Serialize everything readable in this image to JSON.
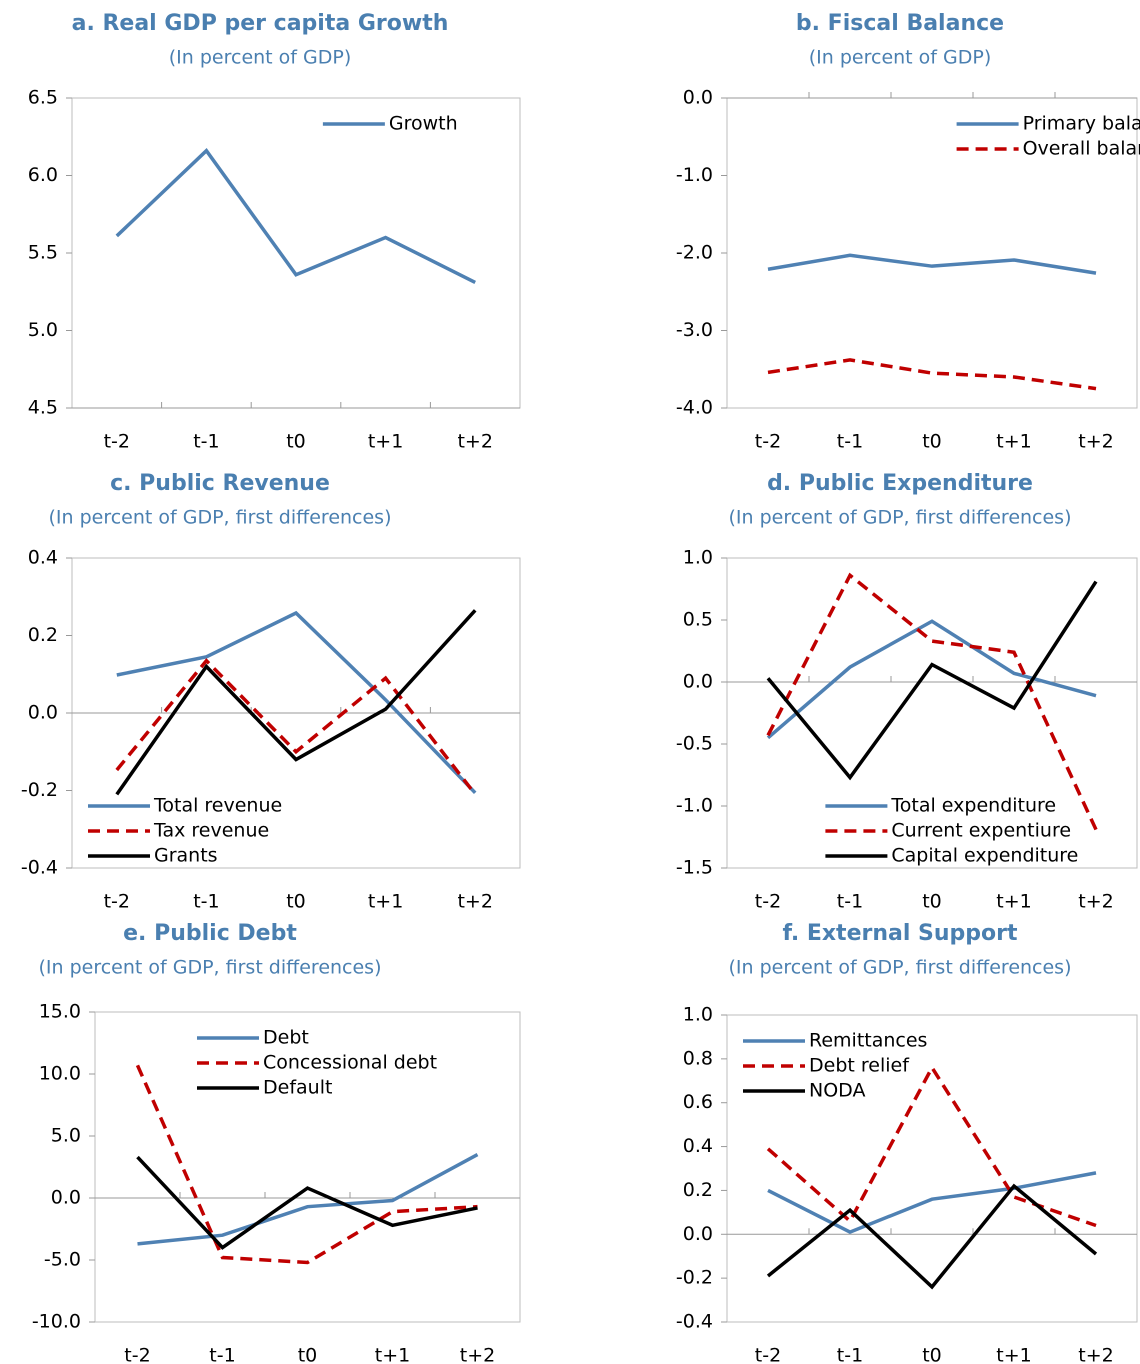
{
  "chart_data": [
    {
      "type": "line",
      "title": "a. Real GDP per capita Growth",
      "subtitle": "(In percent of GDP)",
      "categories": [
        "t-2",
        "t-1",
        "t0",
        "t+1",
        "t+2"
      ],
      "series": [
        {
          "name": "Growth",
          "color": "#4f81b3",
          "style": "solid",
          "values": [
            5.61,
            6.16,
            5.36,
            5.6,
            5.31
          ]
        }
      ],
      "ylim": [
        4.5,
        6.5
      ],
      "yticks": [
        4.5,
        {
          "value": 5,
          "label": "5.0"
        },
        5.5,
        {
          "value": 6,
          "label": "6.0"
        },
        6.5
      ],
      "legend": "upper right"
    },
    {
      "type": "line",
      "title": "b. Fiscal Balance",
      "subtitle": "(In percent of GDP)",
      "categories": [
        "t-2",
        "t-1",
        "t0",
        "t+1",
        "t+2"
      ],
      "series": [
        {
          "name": "Primary balance",
          "color": "#4f81b3",
          "style": "solid",
          "values": [
            -2.21,
            -2.03,
            -2.17,
            -2.09,
            -2.26
          ]
        },
        {
          "name": "Overall balance",
          "color": "#c00000",
          "style": "dashed",
          "values": [
            -3.54,
            -3.38,
            -3.55,
            -3.6,
            -3.75
          ]
        }
      ],
      "ylim": [
        -4,
        0
      ],
      "yticks": [
        {
          "value": -4,
          "label": "-4.0"
        },
        {
          "value": -3,
          "label": "-3.0"
        },
        {
          "value": -2,
          "label": "-2.0"
        },
        {
          "value": -1,
          "label": "-1.0"
        },
        {
          "value": 0,
          "label": "0.0"
        }
      ],
      "legend": "upper right"
    },
    {
      "type": "line",
      "title": "c. Public Revenue",
      "subtitle": "(In percent of GDP, first differences)",
      "categories": [
        "t-2",
        "t-1",
        "t0",
        "t+1",
        "t+2"
      ],
      "series": [
        {
          "name": "Total revenue",
          "color": "#4f81b3",
          "style": "solid",
          "values": [
            0.098,
            0.145,
            0.258,
            0.034,
            -0.206
          ]
        },
        {
          "name": "Tax revenue",
          "color": "#c00000",
          "style": "dashed",
          "values": [
            -0.147,
            0.135,
            -0.1,
            0.09,
            -0.21
          ]
        },
        {
          "name": "Grants",
          "color": "#000000",
          "style": "solid",
          "values": [
            -0.21,
            0.12,
            -0.12,
            0.01,
            0.265
          ]
        }
      ],
      "ylim": [
        -0.4,
        0.4
      ],
      "yticks": [
        -0.4,
        -0.2,
        {
          "value": 0,
          "label": "0.0"
        },
        0.2,
        0.4
      ],
      "legend": "lower left"
    },
    {
      "type": "line",
      "title": "d. Public Expenditure",
      "subtitle": "(In percent of GDP, first differences)",
      "categories": [
        "t-2",
        "t-1",
        "t0",
        "t+1",
        "t+2"
      ],
      "series": [
        {
          "name": "Total expenditure",
          "color": "#4f81b3",
          "style": "solid",
          "values": [
            -0.45,
            0.12,
            0.49,
            0.07,
            -0.11
          ]
        },
        {
          "name": "Current expentiure",
          "color": "#c00000",
          "style": "dashed",
          "values": [
            -0.43,
            0.86,
            0.33,
            0.24,
            -1.19
          ]
        },
        {
          "name": "Capital expenditure",
          "color": "#000000",
          "style": "solid",
          "values": [
            0.03,
            -0.77,
            0.14,
            -0.21,
            0.81
          ]
        }
      ],
      "ylim": [
        -1.5,
        1
      ],
      "yticks": [
        -1.5,
        {
          "value": -1,
          "label": "-1.0"
        },
        -0.5,
        {
          "value": 0,
          "label": "0.0"
        },
        0.5,
        {
          "value": 1,
          "label": "1.0"
        }
      ],
      "legend": "lower center"
    },
    {
      "type": "line",
      "title": "e. Public Debt",
      "subtitle": "(In percent of GDP, first differences)",
      "categories": [
        "t-2",
        "t-1",
        "t0",
        "t+1",
        "t+2"
      ],
      "series": [
        {
          "name": "Debt",
          "color": "#4f81b3",
          "style": "solid",
          "values": [
            -3.7,
            -3.0,
            -0.7,
            -0.2,
            3.5
          ]
        },
        {
          "name": "Concessional debt",
          "color": "#c00000",
          "style": "dashed",
          "values": [
            10.7,
            -4.8,
            -5.2,
            -1.1,
            -0.7
          ]
        },
        {
          "name": "Default",
          "color": "#000000",
          "style": "solid",
          "values": [
            3.3,
            -4.0,
            0.8,
            -2.2,
            -0.8
          ]
        }
      ],
      "ylim": [
        -10,
        15
      ],
      "yticks": [
        {
          "value": -10,
          "label": "-10.0"
        },
        {
          "value": -5,
          "label": "-5.0"
        },
        {
          "value": 0,
          "label": "0.0"
        },
        {
          "value": 5,
          "label": "5.0"
        },
        {
          "value": 10,
          "label": "10.0"
        },
        {
          "value": 15,
          "label": "15.0"
        }
      ],
      "legend": "upper center"
    },
    {
      "type": "line",
      "title": "f. External Support",
      "subtitle": "(In percent of GDP, first differences)",
      "categories": [
        "t-2",
        "t-1",
        "t0",
        "t+1",
        "t+2"
      ],
      "series": [
        {
          "name": "Remittances",
          "color": "#4f81b3",
          "style": "solid",
          "values": [
            0.2,
            0.01,
            0.16,
            0.21,
            0.28
          ]
        },
        {
          "name": "Debt relief",
          "color": "#c00000",
          "style": "dashed",
          "values": [
            0.39,
            0.06,
            0.76,
            0.17,
            0.04
          ]
        },
        {
          "name": "NODA",
          "color": "#000000",
          "style": "solid",
          "values": [
            -0.19,
            0.11,
            -0.24,
            0.22,
            -0.09
          ]
        }
      ],
      "ylim": [
        -0.4,
        1
      ],
      "yticks": [
        -0.4,
        -0.2,
        {
          "value": 0,
          "label": "0.0"
        },
        0.2,
        0.4,
        0.6,
        0.8,
        {
          "value": 1,
          "label": "1.0"
        }
      ],
      "legend": "upper left"
    }
  ]
}
